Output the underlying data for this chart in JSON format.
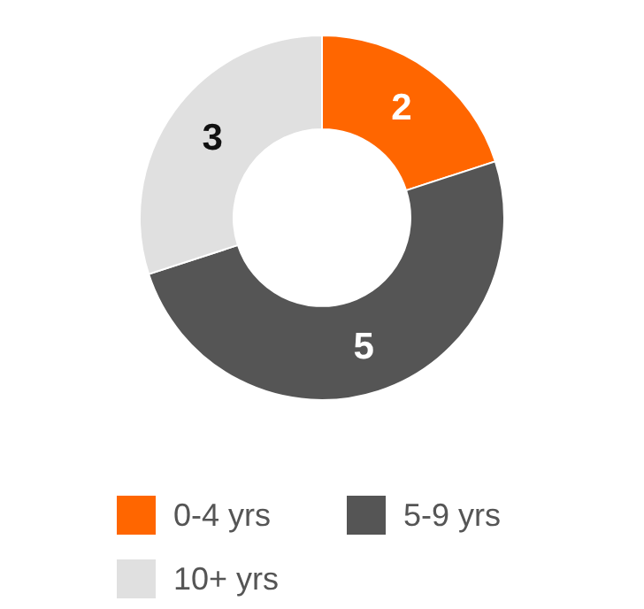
{
  "chart_data": {
    "type": "donut",
    "categories": [
      "0-4 yrs",
      "5-9 yrs",
      "10+ yrs"
    ],
    "values": [
      2,
      5,
      3
    ],
    "colors": [
      "#ff6600",
      "#555555",
      "#e0e0e0"
    ],
    "data_labels": true,
    "legend": "bottom"
  }
}
